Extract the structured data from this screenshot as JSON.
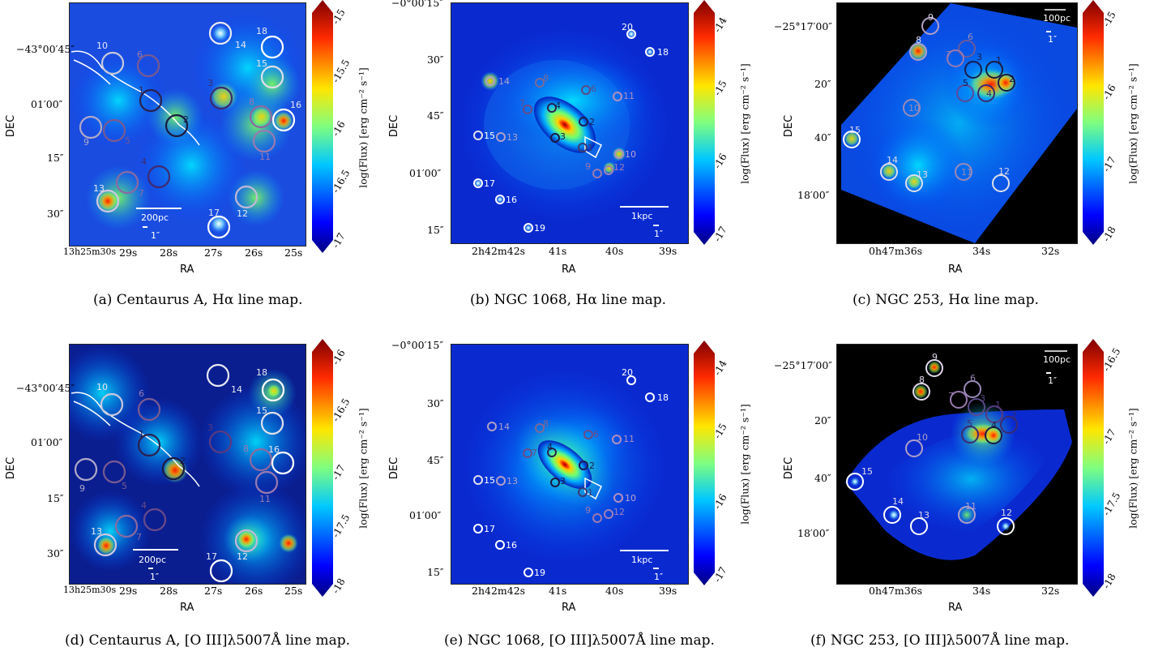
{
  "panels": [
    {
      "id": "a",
      "caption": "(a)  Centaurus A, Hα line map.",
      "ylabel": "DEC",
      "xlabel": "RA",
      "yticks": [
        "−43°00′45″",
        "01′00″",
        "15″",
        "30″"
      ],
      "xticks": [
        "13h25m30s",
        "29s",
        "28s",
        "27s",
        "26s",
        "25s"
      ],
      "colorbar_label": "log(Flux) [erg cm⁻² s⁻¹]",
      "colorbar_ticks": [
        "-15",
        "-15.5",
        "-16",
        "-16.5",
        "-17"
      ],
      "scalebars": [
        "200pc",
        "1″"
      ],
      "regions": [
        "10",
        "6",
        "3",
        "14",
        "18",
        "15",
        "16",
        "8",
        "9",
        "5",
        "1",
        "2",
        "4",
        "7",
        "13",
        "17",
        "12",
        "11"
      ]
    },
    {
      "id": "b",
      "caption": "(b)  NGC 1068, Hα line map.",
      "ylabel": "DEC",
      "xlabel": "RA",
      "yticks": [
        "−0°00′15″",
        "30″",
        "45″",
        "01′00″",
        "15″"
      ],
      "xticks": [
        "2h42m42s",
        "41s",
        "40s",
        "39s"
      ],
      "colorbar_label": "log(Flux) [erg cm⁻² s⁻¹]",
      "colorbar_ticks": [
        "-14",
        "-15",
        "-16",
        "-17"
      ],
      "scalebars": [
        "1kpc",
        "1″"
      ],
      "regions": [
        "20",
        "18",
        "14",
        "8",
        "6",
        "7",
        "4",
        "2",
        "3",
        "1",
        "15",
        "13",
        "10",
        "9",
        "12",
        "11",
        "17",
        "16",
        "19"
      ]
    },
    {
      "id": "c",
      "caption": "(c)  NGC 253, Hα line map.",
      "ylabel": "DEC",
      "xlabel": "RA",
      "yticks": [
        "−25°17′00″",
        "20″",
        "40″",
        "18′00″"
      ],
      "xticks": [
        "0h47m36s",
        "34s",
        "32s"
      ],
      "colorbar_label": "log(Flux) [erg cm⁻² s⁻¹]",
      "colorbar_ticks": [
        "-15",
        "-16",
        "-17",
        "-18"
      ],
      "scalebars": [
        "100pc",
        "1″"
      ],
      "regions": [
        "9",
        "8",
        "6",
        "7",
        "3",
        "2",
        "1",
        "4",
        "5",
        "10",
        "15",
        "14",
        "13",
        "11",
        "12"
      ]
    },
    {
      "id": "d",
      "caption": "(d)  Centaurus A, [O III]λ5007Å line map.",
      "ylabel": "DEC",
      "xlabel": "RA",
      "yticks": [
        "−43°00′45″",
        "01′00″",
        "15″",
        "30″"
      ],
      "xticks": [
        "13h25m30s",
        "29s",
        "28s",
        "27s",
        "26s",
        "25s"
      ],
      "colorbar_label": "log(Flux) [erg cm⁻² s⁻¹]",
      "colorbar_ticks": [
        "-16",
        "-16.5",
        "-17",
        "-17.5",
        "-18"
      ],
      "scalebars": [
        "200pc",
        "1″"
      ],
      "regions": [
        "10",
        "6",
        "14",
        "18",
        "15",
        "3",
        "8",
        "16",
        "9",
        "5",
        "1",
        "2",
        "11",
        "4",
        "7",
        "13",
        "17",
        "12"
      ]
    },
    {
      "id": "e",
      "caption": "(e)  NGC 1068, [O III]λ5007Å line map.",
      "ylabel": "DEC",
      "xlabel": "RA",
      "yticks": [
        "−0°00′15″",
        "30″",
        "45″",
        "01′00″",
        "15″"
      ],
      "xticks": [
        "2h42m42s",
        "41s",
        "40s",
        "39s"
      ],
      "colorbar_label": "log(Flux) [erg cm⁻² s⁻¹]",
      "colorbar_ticks": [
        "-14",
        "-15",
        "-16",
        "-17"
      ],
      "scalebars": [
        "1kpc",
        "1″"
      ],
      "regions": [
        "20",
        "18",
        "14",
        "8",
        "6",
        "11",
        "7",
        "4",
        "2",
        "3",
        "1",
        "15",
        "13",
        "10",
        "9",
        "12",
        "17",
        "16",
        "19"
      ]
    },
    {
      "id": "f",
      "caption": "(f)  NGC 253, [O III]λ5007Å line map.",
      "ylabel": "DEC",
      "xlabel": "RA",
      "yticks": [
        "−25°17′00″",
        "20″",
        "40″",
        "18′00″"
      ],
      "xticks": [
        "0h47m36s",
        "34s",
        "32s"
      ],
      "colorbar_label": "log(Flux) [erg cm⁻² s⁻¹]",
      "colorbar_ticks": [
        "-16.5",
        "-17",
        "-17.5",
        "-18"
      ],
      "scalebars": [
        "100pc",
        "1″"
      ],
      "regions": [
        "9",
        "8",
        "6",
        "7",
        "3",
        "1",
        "2",
        "4",
        "5",
        "10",
        "15",
        "14",
        "13",
        "11",
        "12"
      ]
    }
  ]
}
